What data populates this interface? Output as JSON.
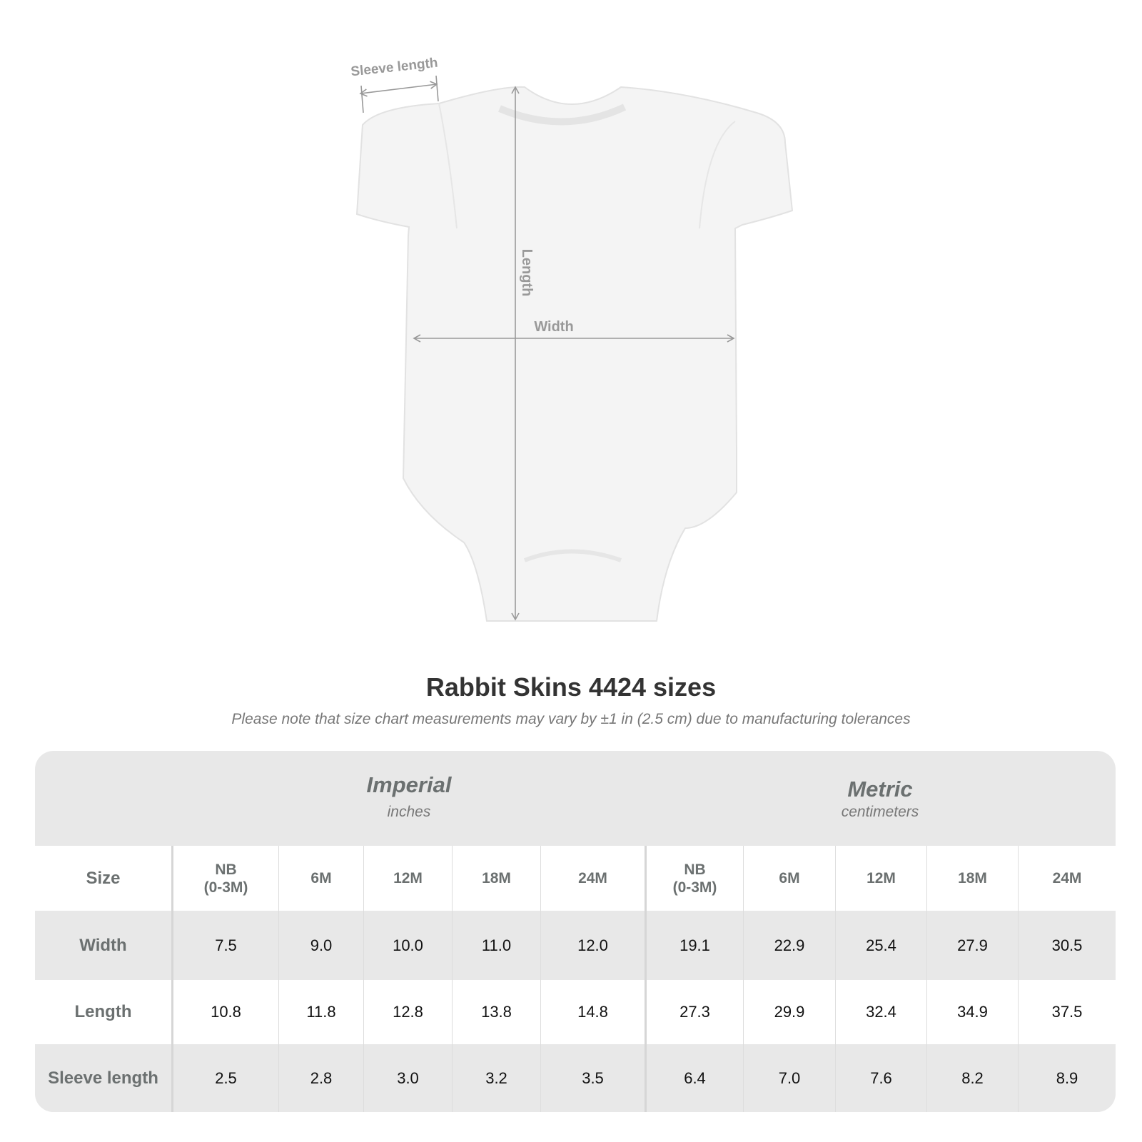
{
  "diagram": {
    "labels": {
      "sleeve": "Sleeve length",
      "length": "Length",
      "width": "Width"
    },
    "colors": {
      "garment": "#f3f3f3",
      "arrows": "#999999"
    }
  },
  "title": "Rabbit Skins 4424 sizes",
  "subtitle": "Please note that size chart measurements may vary by ±1 in (2.5 cm) due to manufacturing tolerances",
  "table": {
    "groups": [
      {
        "name": "Imperial",
        "unit": "inches"
      },
      {
        "name": "Metric",
        "unit": "centimeters"
      }
    ],
    "size_label": "Size",
    "sizes": [
      "NB\n(0-3M)",
      "6M",
      "12M",
      "18M",
      "24M"
    ],
    "rows": [
      {
        "label": "Width",
        "imperial": [
          "7.5",
          "9.0",
          "10.0",
          "11.0",
          "12.0"
        ],
        "metric": [
          "19.1",
          "22.9",
          "25.4",
          "27.9",
          "30.5"
        ]
      },
      {
        "label": "Length",
        "imperial": [
          "10.8",
          "11.8",
          "12.8",
          "13.8",
          "14.8"
        ],
        "metric": [
          "27.3",
          "29.9",
          "32.4",
          "34.9",
          "37.5"
        ]
      },
      {
        "label": "Sleeve length",
        "imperial": [
          "2.5",
          "2.8",
          "3.0",
          "3.2",
          "3.5"
        ],
        "metric": [
          "6.4",
          "7.0",
          "7.6",
          "8.2",
          "8.9"
        ]
      }
    ]
  }
}
